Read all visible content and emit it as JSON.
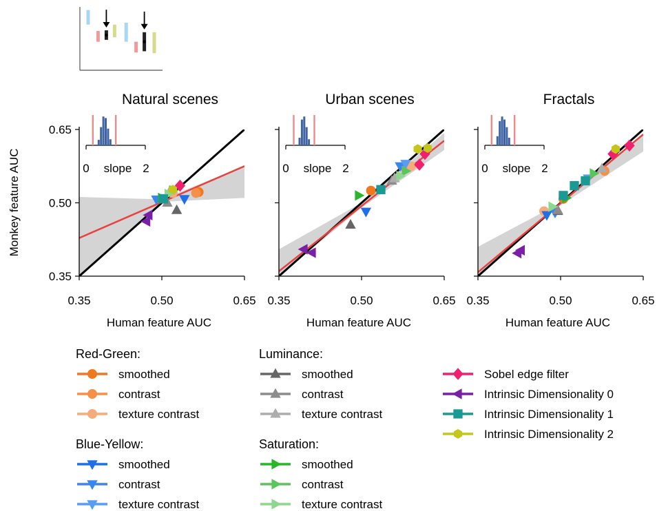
{
  "chart_data": {
    "type": "scatter",
    "x_ticks": [
      "0.35",
      "0.50",
      "0.65"
    ],
    "y_ticks": [
      "0.65",
      "0.50",
      "0.35"
    ],
    "xlim": [
      0.35,
      0.65
    ],
    "ylim": [
      0.35,
      0.65
    ],
    "xlabel": "Human feature AUC",
    "ylabel": "Monkey feature AUC",
    "inset": {
      "tick_left": "0",
      "label": "slope",
      "tick_right": "2",
      "bar_color": "#3f63a3",
      "ci_color": "#f08a8a"
    },
    "colors": {
      "identity": "#000000",
      "fit": "#e8413f",
      "band": "#d4d4d4"
    },
    "panels": [
      {
        "title": "Natural scenes",
        "fit": {
          "y_at_xmin": 0.428,
          "y_at_xmax": 0.575
        },
        "band": {
          "upper": [
            [
              0.35,
              0.512
            ],
            [
              0.5,
              0.507
            ],
            [
              0.65,
              0.575
            ]
          ],
          "lower": [
            [
              0.35,
              0.35
            ],
            [
              0.5,
              0.502
            ],
            [
              0.65,
              0.51
            ]
          ]
        },
        "inset_bins": [
          0.18,
          0.6,
          0.95,
          0.9,
          0.55,
          0.2
        ],
        "points": [
          {
            "feature": "rg_smoothed",
            "x": 0.567,
            "y": 0.522
          },
          {
            "feature": "rg_contrast",
            "x": 0.562,
            "y": 0.52
          },
          {
            "feature": "rg_texture",
            "x": 0.52,
            "y": 0.52
          },
          {
            "feature": "by_smoothed",
            "x": 0.541,
            "y": 0.508
          },
          {
            "feature": "by_contrast",
            "x": 0.49,
            "y": 0.507
          },
          {
            "feature": "by_texture",
            "x": 0.505,
            "y": 0.51
          },
          {
            "feature": "lum_smoothed",
            "x": 0.527,
            "y": 0.485
          },
          {
            "feature": "lum_contrast",
            "x": 0.51,
            "y": 0.5
          },
          {
            "feature": "lum_texture",
            "x": 0.515,
            "y": 0.525
          },
          {
            "feature": "sat_smoothed",
            "x": 0.5,
            "y": 0.51
          },
          {
            "feature": "sat_contrast",
            "x": 0.52,
            "y": 0.525
          },
          {
            "feature": "sat_texture",
            "x": 0.512,
            "y": 0.518
          },
          {
            "feature": "sobel",
            "x": 0.533,
            "y": 0.535
          },
          {
            "feature": "id0",
            "x": 0.476,
            "y": 0.475
          },
          {
            "feature": "id0",
            "x": 0.472,
            "y": 0.462
          },
          {
            "feature": "id1",
            "x": 0.503,
            "y": 0.508
          },
          {
            "feature": "id2",
            "x": 0.52,
            "y": 0.527
          }
        ]
      },
      {
        "title": "Urban scenes",
        "fit": {
          "y_at_xmin": 0.36,
          "y_at_xmax": 0.627
        },
        "band": {
          "upper": [
            [
              0.35,
              0.405
            ],
            [
              0.5,
              0.5
            ],
            [
              0.65,
              0.643
            ]
          ],
          "lower": [
            [
              0.35,
              0.35
            ],
            [
              0.5,
              0.49
            ],
            [
              0.65,
              0.608
            ]
          ]
        },
        "inset_bins": [
          0.25,
          0.85,
          0.95,
          0.6,
          0.2
        ],
        "points": [
          {
            "feature": "rg_smoothed",
            "x": 0.517,
            "y": 0.525
          },
          {
            "feature": "rg_contrast",
            "x": 0.58,
            "y": 0.57
          },
          {
            "feature": "rg_texture",
            "x": 0.59,
            "y": 0.575
          },
          {
            "feature": "by_smoothed",
            "x": 0.508,
            "y": 0.482
          },
          {
            "feature": "by_contrast",
            "x": 0.57,
            "y": 0.575
          },
          {
            "feature": "by_texture",
            "x": 0.58,
            "y": 0.58
          },
          {
            "feature": "lum_smoothed",
            "x": 0.48,
            "y": 0.455
          },
          {
            "feature": "lum_contrast",
            "x": 0.555,
            "y": 0.545
          },
          {
            "feature": "lum_texture",
            "x": 0.56,
            "y": 0.55
          },
          {
            "feature": "sat_smoothed",
            "x": 0.495,
            "y": 0.515
          },
          {
            "feature": "sat_contrast",
            "x": 0.58,
            "y": 0.565
          },
          {
            "feature": "sat_texture",
            "x": 0.57,
            "y": 0.555
          },
          {
            "feature": "sobel",
            "x": 0.615,
            "y": 0.6
          },
          {
            "feature": "sobel",
            "x": 0.605,
            "y": 0.578
          },
          {
            "feature": "id0",
            "x": 0.395,
            "y": 0.405
          },
          {
            "feature": "id0",
            "x": 0.41,
            "y": 0.398
          },
          {
            "feature": "id1",
            "x": 0.535,
            "y": 0.527
          },
          {
            "feature": "id2",
            "x": 0.602,
            "y": 0.61
          },
          {
            "feature": "id2",
            "x": 0.62,
            "y": 0.612
          }
        ]
      },
      {
        "title": "Fractals",
        "fit": {
          "y_at_xmin": 0.358,
          "y_at_xmax": 0.64
        },
        "band": {
          "upper": [
            [
              0.35,
              0.41
            ],
            [
              0.5,
              0.5
            ],
            [
              0.65,
              0.64
            ]
          ],
          "lower": [
            [
              0.35,
              0.35
            ],
            [
              0.5,
              0.495
            ],
            [
              0.65,
              0.605
            ]
          ]
        },
        "inset_bins": [
          0.3,
          0.8,
          0.95,
          0.85,
          0.6,
          0.25
        ],
        "points": [
          {
            "feature": "rg_smoothed",
            "x": 0.505,
            "y": 0.508
          },
          {
            "feature": "rg_contrast",
            "x": 0.58,
            "y": 0.565
          },
          {
            "feature": "rg_texture",
            "x": 0.47,
            "y": 0.483
          },
          {
            "feature": "by_smoothed",
            "x": 0.475,
            "y": 0.475
          },
          {
            "feature": "by_contrast",
            "x": 0.49,
            "y": 0.48
          },
          {
            "feature": "by_texture",
            "x": 0.55,
            "y": 0.55
          },
          {
            "feature": "lum_smoothed",
            "x": 0.495,
            "y": 0.483
          },
          {
            "feature": "lum_contrast",
            "x": 0.495,
            "y": 0.485
          },
          {
            "feature": "lum_texture",
            "x": 0.575,
            "y": 0.57
          },
          {
            "feature": "sat_smoothed",
            "x": 0.51,
            "y": 0.51
          },
          {
            "feature": "sat_contrast",
            "x": 0.56,
            "y": 0.56
          },
          {
            "feature": "sat_texture",
            "x": 0.485,
            "y": 0.492
          },
          {
            "feature": "sobel",
            "x": 0.595,
            "y": 0.6
          },
          {
            "feature": "sobel",
            "x": 0.625,
            "y": 0.617
          },
          {
            "feature": "id0",
            "x": 0.422,
            "y": 0.397
          },
          {
            "feature": "id0",
            "x": 0.428,
            "y": 0.403
          },
          {
            "feature": "id1",
            "x": 0.505,
            "y": 0.515
          },
          {
            "feature": "id1",
            "x": 0.525,
            "y": 0.535
          },
          {
            "feature": "id1",
            "x": 0.545,
            "y": 0.545
          },
          {
            "feature": "id2",
            "x": 0.6,
            "y": 0.61
          }
        ]
      }
    ],
    "legend": {
      "groups": [
        {
          "heading": "Red-Green:",
          "items": [
            {
              "key": "rg_smoothed",
              "label": "smoothed",
              "color": "#f0781e",
              "marker": "circle"
            },
            {
              "key": "rg_contrast",
              "label": "contrast",
              "color": "#f4904a",
              "marker": "circle"
            },
            {
              "key": "rg_texture",
              "label": "texture contrast",
              "color": "#f6ab7a",
              "marker": "circle"
            }
          ]
        },
        {
          "heading": "Blue-Yellow:",
          "items": [
            {
              "key": "by_smoothed",
              "label": "smoothed",
              "color": "#1f6fe8",
              "marker": "tri-down"
            },
            {
              "key": "by_contrast",
              "label": "contrast",
              "color": "#3a86f0",
              "marker": "tri-down"
            },
            {
              "key": "by_texture",
              "label": "texture contrast",
              "color": "#5a9cf2",
              "marker": "tri-down"
            }
          ]
        },
        {
          "heading": "Luminance:",
          "items": [
            {
              "key": "lum_smoothed",
              "label": "smoothed",
              "color": "#666666",
              "marker": "tri-up"
            },
            {
              "key": "lum_contrast",
              "label": "contrast",
              "color": "#8c8c8c",
              "marker": "tri-up"
            },
            {
              "key": "lum_texture",
              "label": "texture contrast",
              "color": "#adadad",
              "marker": "tri-up"
            }
          ]
        },
        {
          "heading": "Saturation:",
          "items": [
            {
              "key": "sat_smoothed",
              "label": "smoothed",
              "color": "#2bb52b",
              "marker": "tri-right"
            },
            {
              "key": "sat_contrast",
              "label": "contrast",
              "color": "#5ac65a",
              "marker": "tri-right"
            },
            {
              "key": "sat_texture",
              "label": "texture contrast",
              "color": "#8ed88e",
              "marker": "tri-right"
            }
          ]
        },
        {
          "heading": "",
          "items": [
            {
              "key": "sobel",
              "label": "Sobel edge filter",
              "color": "#f0206e",
              "marker": "diamond"
            },
            {
              "key": "id0",
              "label": "Intrinsic Dimensionality 0",
              "color": "#7a1fa8",
              "marker": "tri-left"
            },
            {
              "key": "id1",
              "label": "Intrinsic Dimensionality 1",
              "color": "#1a9a92",
              "marker": "square"
            },
            {
              "key": "id2",
              "label": "Intrinsic Dimensionality 2",
              "color": "#c6c61a",
              "marker": "hexagon"
            }
          ]
        }
      ]
    },
    "schematic": {
      "bars": [
        {
          "x": 0.1,
          "lo": 0.72,
          "hi": 0.95,
          "color": "#a9d6f5"
        },
        {
          "x": 0.22,
          "lo": 0.45,
          "hi": 0.62,
          "color": "#f29a9a"
        },
        {
          "x": 0.32,
          "lo": 0.48,
          "hi": 0.63,
          "color": "#222222",
          "arrow": true
        },
        {
          "x": 0.42,
          "lo": 0.52,
          "hi": 0.72,
          "color": "#d7dc8c"
        },
        {
          "x": 0.56,
          "lo": 0.45,
          "hi": 0.75,
          "color": "#a9d6f5"
        },
        {
          "x": 0.68,
          "lo": 0.28,
          "hi": 0.45,
          "color": "#f29a9a"
        },
        {
          "x": 0.78,
          "lo": 0.3,
          "hi": 0.6,
          "color": "#222222",
          "arrow": true
        },
        {
          "x": 0.9,
          "lo": 0.27,
          "hi": 0.6,
          "color": "#d7dc8c"
        }
      ]
    }
  }
}
